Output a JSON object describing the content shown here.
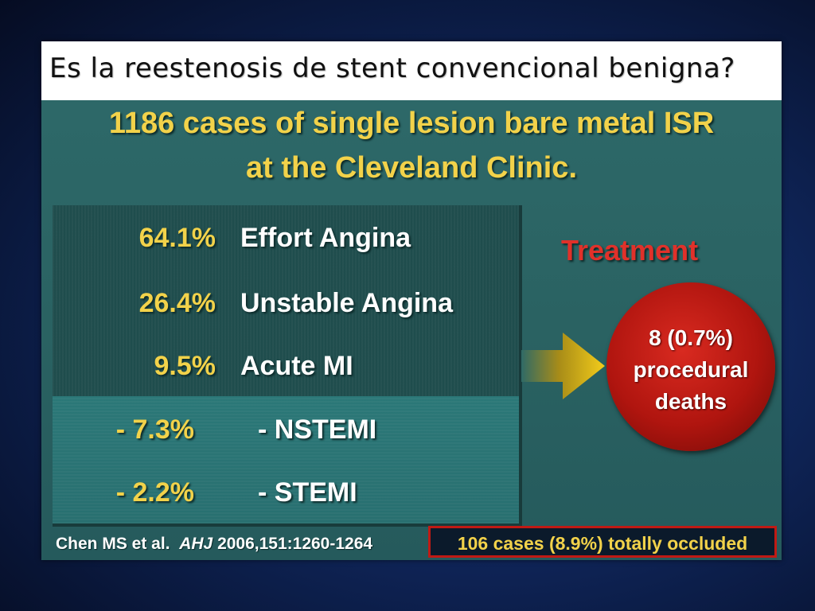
{
  "title": "Es la reestenosis de stent convencional benigna?",
  "heading": {
    "line1": "1186 cases of single lesion bare metal ISR",
    "line2": "at the Cleveland Clinic."
  },
  "presentation_rows": [
    {
      "pct": "64.1%",
      "label": "Effort Angina"
    },
    {
      "pct": "26.4%",
      "label": "Unstable Angina"
    },
    {
      "pct": "9.5%",
      "label": "Acute MI"
    },
    {
      "pct": "- 7.3%",
      "label": "- NSTEMI"
    },
    {
      "pct": "- 2.2%",
      "label": "- STEMI"
    }
  ],
  "treatment": {
    "label": "Treatment",
    "outcome_line1": "8 (0.7%)",
    "outcome_line2": "procedural",
    "outcome_line3": "deaths"
  },
  "citation": {
    "authors": "Chen MS et al.",
    "journal": "AHJ",
    "ref": "2006,151:1260-1264"
  },
  "occluded_box": "106 cases (8.9%) totally occluded",
  "colors": {
    "accent_yellow": "#f2d24a",
    "treatment_red": "#e0312a",
    "slide_teal": "#2e6a6a"
  }
}
